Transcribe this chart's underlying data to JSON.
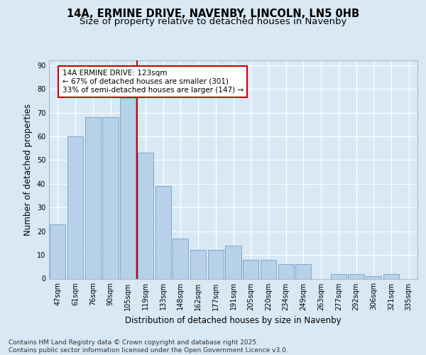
{
  "title": "14A, ERMINE DRIVE, NAVENBY, LINCOLN, LN5 0HB",
  "subtitle": "Size of property relative to detached houses in Navenby",
  "xlabel": "Distribution of detached houses by size in Navenby",
  "ylabel": "Number of detached properties",
  "categories": [
    "47sqm",
    "61sqm",
    "76sqm",
    "90sqm",
    "105sqm",
    "119sqm",
    "133sqm",
    "148sqm",
    "162sqm",
    "177sqm",
    "191sqm",
    "205sqm",
    "220sqm",
    "234sqm",
    "249sqm",
    "263sqm",
    "277sqm",
    "292sqm",
    "306sqm",
    "321sqm",
    "335sqm"
  ],
  "values": [
    23,
    60,
    68,
    68,
    76,
    53,
    39,
    17,
    12,
    12,
    14,
    8,
    8,
    6,
    6,
    0,
    2,
    2,
    1,
    2,
    0
  ],
  "bar_color": "#b8d0e8",
  "bar_edge_color": "#7aaad0",
  "bg_color": "#d8e8f4",
  "grid_color": "#ffffff",
  "vline_x": 4.5,
  "vline_color": "#cc0000",
  "annotation_text": "14A ERMINE DRIVE: 123sqm\n← 67% of detached houses are smaller (301)\n33% of semi-detached houses are larger (147) →",
  "annotation_box_facecolor": "#ffffff",
  "annotation_box_edgecolor": "#cc0000",
  "ylim": [
    0,
    92
  ],
  "yticks": [
    0,
    10,
    20,
    30,
    40,
    50,
    60,
    70,
    80,
    90
  ],
  "footer": "Contains HM Land Registry data © Crown copyright and database right 2025.\nContains public sector information licensed under the Open Government Licence v3.0.",
  "title_fontsize": 10.5,
  "subtitle_fontsize": 9.5,
  "label_fontsize": 8.5,
  "tick_fontsize": 7,
  "annotation_fontsize": 7.5,
  "footer_fontsize": 6.5
}
